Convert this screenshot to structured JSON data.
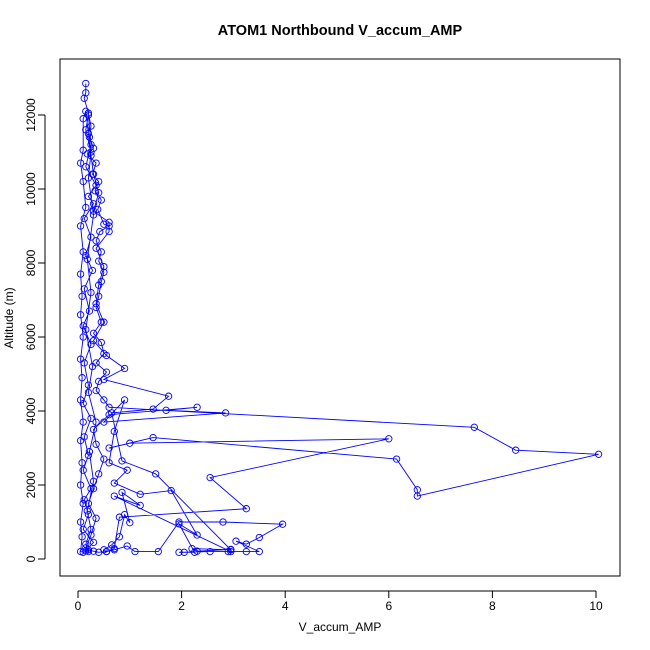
{
  "chart_data": {
    "type": "line",
    "title": "ATOM1 Northbound V_accum_AMP",
    "xlabel": "V_accum_AMP",
    "ylabel": "Altitude (m)",
    "xlim": [
      0,
      10
    ],
    "ylim": [
      0,
      13000
    ],
    "xticks": [
      0,
      2,
      4,
      6,
      8,
      10
    ],
    "yticks": [
      0,
      2000,
      4000,
      6000,
      8000,
      10000,
      12000
    ],
    "marker": "open-circle",
    "series": [
      {
        "color": "#0000ff",
        "points": [
          [
            0.15,
            12850
          ],
          [
            0.15,
            12600
          ],
          [
            0.12,
            12450
          ],
          [
            0.2,
            12050
          ],
          [
            0.25,
            11700
          ],
          [
            0.22,
            11400
          ],
          [
            0.3,
            11100
          ],
          [
            0.18,
            10950
          ],
          [
            0.35,
            10700
          ],
          [
            0.28,
            10400
          ],
          [
            0.4,
            10200
          ],
          [
            0.33,
            9950
          ],
          [
            0.45,
            9700
          ],
          [
            0.38,
            9450
          ],
          [
            0.5,
            9050
          ],
          [
            0.6,
            9000
          ],
          [
            0.42,
            8850
          ],
          [
            0.35,
            8600
          ],
          [
            0.45,
            8300
          ],
          [
            0.4,
            8050
          ],
          [
            0.5,
            7750
          ],
          [
            0.45,
            7500
          ],
          [
            0.4,
            7100
          ],
          [
            0.35,
            6800
          ],
          [
            0.45,
            6400
          ],
          [
            0.3,
            6100
          ],
          [
            0.45,
            5850
          ],
          [
            0.5,
            5550
          ],
          [
            0.35,
            5300
          ],
          [
            0.55,
            5050
          ],
          [
            0.4,
            4800
          ],
          [
            0.35,
            4550
          ],
          [
            0.5,
            4300
          ],
          [
            0.6,
            4100
          ],
          [
            7.65,
            3560
          ],
          [
            8.45,
            2940
          ],
          [
            10.05,
            2830
          ],
          [
            6.55,
            1700
          ],
          [
            6.55,
            1870
          ],
          [
            6.15,
            2700
          ],
          [
            1.45,
            3280
          ],
          [
            0.6,
            3000
          ],
          [
            1.0,
            3130
          ],
          [
            6.0,
            3250
          ],
          [
            2.55,
            2200
          ],
          [
            3.25,
            1360
          ],
          [
            0.8,
            1130
          ],
          [
            0.7,
            280
          ],
          [
            0.55,
            200
          ],
          [
            0.4,
            180
          ],
          [
            0.3,
            210
          ],
          [
            0.2,
            250
          ],
          [
            0.15,
            300
          ],
          [
            0.25,
            650
          ],
          [
            0.35,
            1100
          ],
          [
            0.2,
            1500
          ],
          [
            0.3,
            1900
          ],
          [
            0.4,
            2300
          ],
          [
            0.5,
            2700
          ],
          [
            0.35,
            3100
          ],
          [
            0.3,
            3500
          ],
          [
            0.6,
            3900
          ],
          [
            2.3,
            4100
          ],
          [
            1.7,
            4020
          ],
          [
            2.85,
            3950
          ],
          [
            0.5,
            3700
          ],
          [
            0.9,
            4300
          ],
          [
            0.7,
            3450
          ],
          [
            0.6,
            2600
          ],
          [
            0.95,
            2400
          ],
          [
            0.7,
            2050
          ],
          [
            1.2,
            1750
          ],
          [
            1.8,
            1850
          ],
          [
            2.3,
            650
          ],
          [
            1.95,
            950
          ],
          [
            2.25,
            180
          ],
          [
            2.05,
            180
          ],
          [
            1.95,
            180
          ],
          [
            2.55,
            200
          ],
          [
            2.9,
            200
          ],
          [
            3.25,
            200
          ],
          [
            3.5,
            200
          ],
          [
            3.05,
            480
          ],
          [
            3.25,
            400
          ],
          [
            3.5,
            580
          ],
          [
            3.95,
            940
          ],
          [
            2.8,
            1000
          ],
          [
            1.95,
            1000
          ],
          [
            1.55,
            200
          ],
          [
            1.1,
            200
          ],
          [
            0.95,
            350
          ],
          [
            0.7,
            250
          ],
          [
            0.55,
            200
          ],
          [
            0.5,
            250
          ],
          [
            0.65,
            380
          ],
          [
            0.8,
            600
          ],
          [
            0.9,
            1200
          ],
          [
            1.0,
            980
          ],
          [
            0.85,
            1800
          ],
          [
            1.2,
            1450
          ],
          [
            0.7,
            1700
          ],
          [
            2.95,
            200
          ],
          [
            2.95,
            260
          ],
          [
            2.3,
            210
          ],
          [
            2.2,
            280
          ],
          [
            2.95,
            250
          ],
          [
            1.5,
            2300
          ],
          [
            0.85,
            2650
          ],
          [
            0.65,
            3950
          ],
          [
            1.45,
            4050
          ],
          [
            1.75,
            4400
          ],
          [
            0.5,
            4850
          ],
          [
            0.9,
            5150
          ],
          [
            0.55,
            5500
          ],
          [
            0.3,
            5900
          ],
          [
            0.5,
            6400
          ],
          [
            0.35,
            6900
          ],
          [
            0.4,
            7400
          ],
          [
            0.5,
            7900
          ],
          [
            0.35,
            8400
          ],
          [
            0.6,
            8850
          ],
          [
            0.6,
            9100
          ],
          [
            0.3,
            9400
          ],
          [
            0.4,
            9900
          ],
          [
            0.3,
            10400
          ],
          [
            0.25,
            10900
          ],
          [
            0.2,
            11500
          ],
          [
            0.15,
            12100
          ],
          [
            0.1,
            11900
          ],
          [
            0.1,
            11050
          ],
          [
            0.05,
            10700
          ],
          [
            0.1,
            10200
          ],
          [
            0.15,
            9500
          ],
          [
            0.05,
            9000
          ],
          [
            0.1,
            8300
          ],
          [
            0.05,
            7700
          ],
          [
            0.08,
            7100
          ],
          [
            0.05,
            6600
          ],
          [
            0.1,
            6000
          ],
          [
            0.05,
            5400
          ],
          [
            0.08,
            4900
          ],
          [
            0.05,
            4300
          ],
          [
            0.1,
            3700
          ],
          [
            0.05,
            3200
          ],
          [
            0.08,
            2600
          ],
          [
            0.05,
            2000
          ],
          [
            0.1,
            1500
          ],
          [
            0.05,
            1000
          ],
          [
            0.08,
            600
          ],
          [
            0.05,
            200
          ],
          [
            0.1,
            180
          ],
          [
            0.2,
            200
          ],
          [
            0.15,
            400
          ],
          [
            0.25,
            800
          ],
          [
            0.18,
            1300
          ],
          [
            0.3,
            2100
          ],
          [
            0.22,
            2900
          ],
          [
            0.35,
            3700
          ],
          [
            0.2,
            4500
          ],
          [
            0.28,
            5200
          ],
          [
            0.15,
            6200
          ],
          [
            0.25,
            7200
          ],
          [
            0.18,
            8100
          ],
          [
            0.3,
            9300
          ],
          [
            0.2,
            10300
          ],
          [
            0.25,
            11000
          ],
          [
            0.15,
            11600
          ],
          [
            0.2,
            12000
          ],
          [
            0.25,
            11200
          ],
          [
            0.15,
            10600
          ],
          [
            0.35,
            10100
          ],
          [
            0.2,
            9800
          ],
          [
            0.3,
            9600
          ],
          [
            0.12,
            9200
          ],
          [
            0.25,
            8700
          ],
          [
            0.15,
            8200
          ],
          [
            0.28,
            7800
          ],
          [
            0.12,
            7300
          ],
          [
            0.22,
            6700
          ],
          [
            0.1,
            6300
          ],
          [
            0.25,
            5800
          ],
          [
            0.12,
            5300
          ],
          [
            0.2,
            4700
          ],
          [
            0.1,
            4200
          ],
          [
            0.25,
            3800
          ],
          [
            0.12,
            3300
          ],
          [
            0.2,
            2800
          ],
          [
            0.1,
            2400
          ],
          [
            0.25,
            1900
          ],
          [
            0.12,
            1600
          ],
          [
            0.2,
            1200
          ],
          [
            0.1,
            800
          ],
          [
            0.3,
            450
          ],
          [
            0.15,
            220
          ]
        ]
      }
    ]
  }
}
